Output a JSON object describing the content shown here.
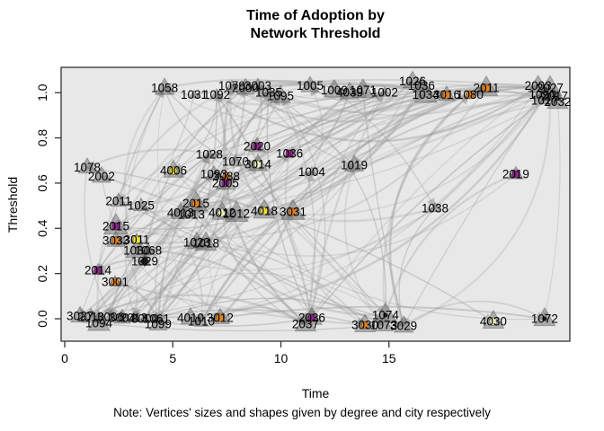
{
  "title": {
    "line1": "Time of Adoption by",
    "line2": "Network Threshold"
  },
  "axes": {
    "x": {
      "label": "Time",
      "ticks": [
        0,
        5,
        10,
        15
      ]
    },
    "y": {
      "label": "Threshold",
      "ticks": [
        "0.0",
        "0.2",
        "0.4",
        "0.6",
        "0.8",
        "1.0"
      ]
    }
  },
  "note": "Note: Vertices' sizes and shapes given by degree and city respectively",
  "colors": {
    "plot_bg": "#e8e8e8",
    "box": "#333333",
    "edge": "#9c9c9c",
    "arrow": "#8a8a8a",
    "vertex": "#636363",
    "label": "#000000",
    "palette": {
      "purple": "#8a2487",
      "orange": "#e8821e",
      "yellow": "#f0e13a",
      "pale": "#efedbb",
      "dark": "#1d1d1d"
    }
  },
  "chart_data": {
    "type": "scatter",
    "subtype": "network-diffusion-plot",
    "title": "Time of Adoption by Network Threshold",
    "xlabel": "Time",
    "ylabel": "Threshold",
    "xlim": [
      -0.2,
      23.5
    ],
    "ylim": [
      -0.05,
      1.11
    ],
    "edge_style": {
      "count": 185,
      "color": "#9c9c9c",
      "arrows": true
    },
    "points": [
      {
        "l": "1058",
        "t": 4.62,
        "h": 1.02
      },
      {
        "l": "1031",
        "t": 5.99,
        "h": 0.99
      },
      {
        "l": "1092",
        "t": 7.03,
        "h": 0.99
      },
      {
        "l": "1079",
        "t": 7.73,
        "h": 1.03
      },
      {
        "l": "2000",
        "t": 8.36,
        "h": 1.02
      },
      {
        "l": "3003",
        "t": 8.94,
        "h": 1.03
      },
      {
        "l": "1035",
        "t": 9.44,
        "h": 1.0
      },
      {
        "l": "1095",
        "t": 9.98,
        "h": 0.985
      },
      {
        "l": "1005",
        "t": 11.35,
        "h": 1.03
      },
      {
        "l": "1009",
        "t": 12.47,
        "h": 1.01
      },
      {
        "l": "4039",
        "t": 13.18,
        "h": 1.0
      },
      {
        "l": "1071",
        "t": 13.8,
        "h": 1.01
      },
      {
        "l": "1002",
        "t": 14.8,
        "h": 1.0
      },
      {
        "l": "1026",
        "t": 16.09,
        "h": 1.05
      },
      {
        "l": "1036",
        "t": 16.5,
        "h": 1.03
      },
      {
        "l": "1034",
        "t": 16.7,
        "h": 0.99
      },
      {
        "l": "3016",
        "t": 17.67,
        "h": 0.99,
        "m": "square",
        "c": "orange"
      },
      {
        "l": "1080",
        "t": 18.75,
        "h": 0.99,
        "m": "square",
        "c": "orange"
      },
      {
        "l": "2011",
        "t": 19.5,
        "h": 1.02,
        "m": "square",
        "c": "orange"
      },
      {
        "l": "2003",
        "t": 21.9,
        "h": 1.03
      },
      {
        "l": "2027",
        "t": 22.45,
        "h": 1.02
      },
      {
        "l": "1090",
        "t": 22.1,
        "h": 0.99
      },
      {
        "l": "2017",
        "t": 22.66,
        "h": 0.985
      },
      {
        "l": "1017",
        "t": 22.2,
        "h": 0.965
      },
      {
        "l": "2032",
        "t": 22.8,
        "h": 0.96
      },
      {
        "l": "1078",
        "t": 1.04,
        "h": 0.67
      },
      {
        "l": "2002",
        "t": 1.7,
        "h": 0.63
      },
      {
        "l": "4006",
        "t": 5.03,
        "h": 0.655,
        "m": "circle",
        "c": "yellow"
      },
      {
        "l": "1028",
        "t": 6.69,
        "h": 0.727
      },
      {
        "l": "2020",
        "t": 8.9,
        "h": 0.763,
        "m": "square",
        "c": "purple"
      },
      {
        "l": "1036",
        "t": 10.4,
        "h": 0.73,
        "m": "square",
        "c": "purple"
      },
      {
        "l": "1070",
        "t": 7.9,
        "h": 0.695
      },
      {
        "l": "3014",
        "t": 8.94,
        "h": 0.683,
        "m": "circle",
        "c": "pale"
      },
      {
        "l": "1093",
        "t": 6.9,
        "h": 0.64
      },
      {
        "l": "3088",
        "t": 7.48,
        "h": 0.63,
        "m": "circle",
        "c": "orange"
      },
      {
        "l": "1004",
        "t": 11.43,
        "h": 0.65
      },
      {
        "l": "1019",
        "t": 13.39,
        "h": 0.68
      },
      {
        "l": "2019",
        "t": 20.87,
        "h": 0.64,
        "m": "square",
        "c": "purple"
      },
      {
        "l": "2005",
        "t": 7.44,
        "h": 0.6,
        "m": "circle",
        "c": "purple"
      },
      {
        "l": "2011",
        "t": 2.49,
        "h": 0.52
      },
      {
        "l": "1025",
        "t": 3.53,
        "h": 0.5
      },
      {
        "l": "2015",
        "t": 6.07,
        "h": 0.51,
        "m": "circle",
        "c": "orange"
      },
      {
        "l": "4013",
        "t": 5.36,
        "h": 0.469
      },
      {
        "l": "1013",
        "t": 5.86,
        "h": 0.461
      },
      {
        "l": "4012",
        "t": 7.28,
        "h": 0.469,
        "m": "diamond",
        "c": "pale"
      },
      {
        "l": "1012",
        "t": 7.94,
        "h": 0.465
      },
      {
        "l": "4018",
        "t": 9.23,
        "h": 0.477,
        "m": "circle",
        "c": "yellow"
      },
      {
        "l": "3031",
        "t": 10.56,
        "h": 0.473,
        "m": "square",
        "c": "orange"
      },
      {
        "l": "1038",
        "t": 17.13,
        "h": 0.489
      },
      {
        "l": "2015",
        "t": 2.37,
        "h": 0.409,
        "m": "square",
        "c": "purple"
      },
      {
        "l": "3033",
        "t": 2.37,
        "h": 0.346,
        "m": "circle",
        "c": "orange"
      },
      {
        "l": "3011",
        "t": 3.33,
        "h": 0.35,
        "m": "square",
        "c": "yellow"
      },
      {
        "l": "1030",
        "t": 3.33,
        "h": 0.302
      },
      {
        "l": "1068",
        "t": 3.87,
        "h": 0.302
      },
      {
        "l": "1023",
        "t": 6.11,
        "h": 0.338
      },
      {
        "l": "1018",
        "t": 6.53,
        "h": 0.334
      },
      {
        "l": "1029",
        "t": 3.7,
        "h": 0.254,
        "m": "diamond",
        "c": "dark"
      },
      {
        "l": "2014",
        "t": 1.54,
        "h": 0.214,
        "m": "square",
        "c": "purple"
      },
      {
        "l": "3001",
        "t": 2.33,
        "h": 0.163,
        "m": "circle",
        "c": "orange"
      },
      {
        "l": "3027",
        "t": 0.71,
        "h": 0.012
      },
      {
        "l": "2010",
        "t": 1.21,
        "h": 0.008
      },
      {
        "l": "1094",
        "t": 1.58,
        "h": -0.02
      },
      {
        "l": "3006",
        "t": 2.12,
        "h": 0.008
      },
      {
        "l": "3004",
        "t": 2.66,
        "h": 0.004
      },
      {
        "l": "2013",
        "t": 3.2,
        "h": 0.004
      },
      {
        "l": "3000",
        "t": 3.7,
        "h": 0.0
      },
      {
        "l": "1061",
        "t": 4.24,
        "h": 0.0
      },
      {
        "l": "1099",
        "t": 4.32,
        "h": -0.024
      },
      {
        "l": "4010",
        "t": 5.82,
        "h": 0.004
      },
      {
        "l": "1010",
        "t": 6.32,
        "h": -0.012
      },
      {
        "l": "3012",
        "t": 7.19,
        "h": 0.004,
        "m": "square",
        "c": "orange"
      },
      {
        "l": "2036",
        "t": 11.43,
        "h": 0.004,
        "m": "circle",
        "c": "purple"
      },
      {
        "l": "2037",
        "t": 11.14,
        "h": -0.024
      },
      {
        "l": "1074",
        "t": 14.84,
        "h": 0.016,
        "m": "dot",
        "c": "dark"
      },
      {
        "l": "3030",
        "t": 13.89,
        "h": -0.028,
        "m": "circle",
        "c": "orange"
      },
      {
        "l": "1073",
        "t": 14.76,
        "h": -0.028
      },
      {
        "l": "3029",
        "t": 15.68,
        "h": -0.032
      },
      {
        "l": "4030",
        "t": 19.83,
        "h": -0.012,
        "m": "circle",
        "c": "pale"
      },
      {
        "l": "1072",
        "t": 22.2,
        "h": 0.0,
        "m": "dot",
        "c": "dark"
      }
    ]
  }
}
